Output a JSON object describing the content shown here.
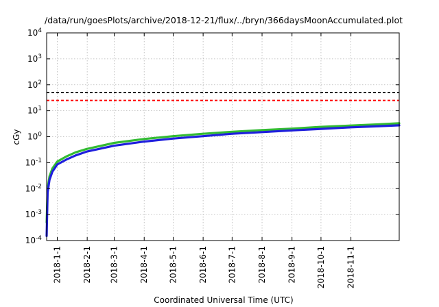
{
  "chart_data": {
    "type": "line",
    "title": "/data/run/goesPlots/archive/2018-12-21/flux/../bryn/366daysMoonAccumulated.plot",
    "xlabel": "Coordinated Universal Time (UTC)",
    "ylabel": "cGy",
    "yscale": "log",
    "ylim": [
      0.0001,
      10000
    ],
    "xlim": [
      "2017-12-21",
      "2018-12-21"
    ],
    "grid": true,
    "y_ticks": [
      {
        "base": "10",
        "exp": "-4",
        "value": 0.0001
      },
      {
        "base": "10",
        "exp": "-3",
        "value": 0.001
      },
      {
        "base": "10",
        "exp": "-2",
        "value": 0.01
      },
      {
        "base": "10",
        "exp": "-1",
        "value": 0.1
      },
      {
        "base": "10",
        "exp": "0",
        "value": 1
      },
      {
        "base": "10",
        "exp": "1",
        "value": 10
      },
      {
        "base": "10",
        "exp": "2",
        "value": 100
      },
      {
        "base": "10",
        "exp": "3",
        "value": 1000
      },
      {
        "base": "10",
        "exp": "4",
        "value": 10000
      }
    ],
    "x_ticks": [
      "2018-1-1",
      "2018-2-1",
      "2018-3-1",
      "2018-4-1",
      "2018-5-1",
      "2018-6-1",
      "2018-7-1",
      "2018-8-1",
      "2018-9-1",
      "2018-10-1",
      "2018-11-1"
    ],
    "reference_lines": [
      {
        "y": 50,
        "color": "#000000",
        "style": "dashed"
      },
      {
        "y": 25,
        "color": "#ff0000",
        "style": "dashed"
      }
    ],
    "series": [
      {
        "color": "#33bb33",
        "x": [
          "2017-12-21",
          "2017-12-22",
          "2017-12-24",
          "2017-12-27",
          "2018-1-1",
          "2018-1-10",
          "2018-1-20",
          "2018-2-1",
          "2018-3-1",
          "2018-4-1",
          "2018-5-1",
          "2018-6-1",
          "2018-7-1",
          "2018-8-1",
          "2018-9-1",
          "2018-10-1",
          "2018-11-1",
          "2018-12-1",
          "2018-12-21"
        ],
        "y": [
          0.0005,
          0.01,
          0.03,
          0.06,
          0.11,
          0.17,
          0.25,
          0.34,
          0.58,
          0.82,
          1.05,
          1.3,
          1.55,
          1.8,
          2.05,
          2.4,
          2.7,
          3.0,
          3.3
        ]
      },
      {
        "color": "#1f1fdd",
        "x": [
          "2017-12-21",
          "2017-12-22",
          "2017-12-24",
          "2017-12-27",
          "2018-1-1",
          "2018-1-10",
          "2018-1-20",
          "2018-2-1",
          "2018-3-1",
          "2018-4-1",
          "2018-5-1",
          "2018-6-1",
          "2018-7-1",
          "2018-8-1",
          "2018-9-1",
          "2018-10-1",
          "2018-11-1",
          "2018-12-1",
          "2018-12-21"
        ],
        "y": [
          0.00015,
          0.007,
          0.022,
          0.045,
          0.085,
          0.13,
          0.19,
          0.27,
          0.45,
          0.65,
          0.85,
          1.05,
          1.3,
          1.5,
          1.75,
          2.0,
          2.3,
          2.55,
          2.75
        ]
      }
    ]
  }
}
